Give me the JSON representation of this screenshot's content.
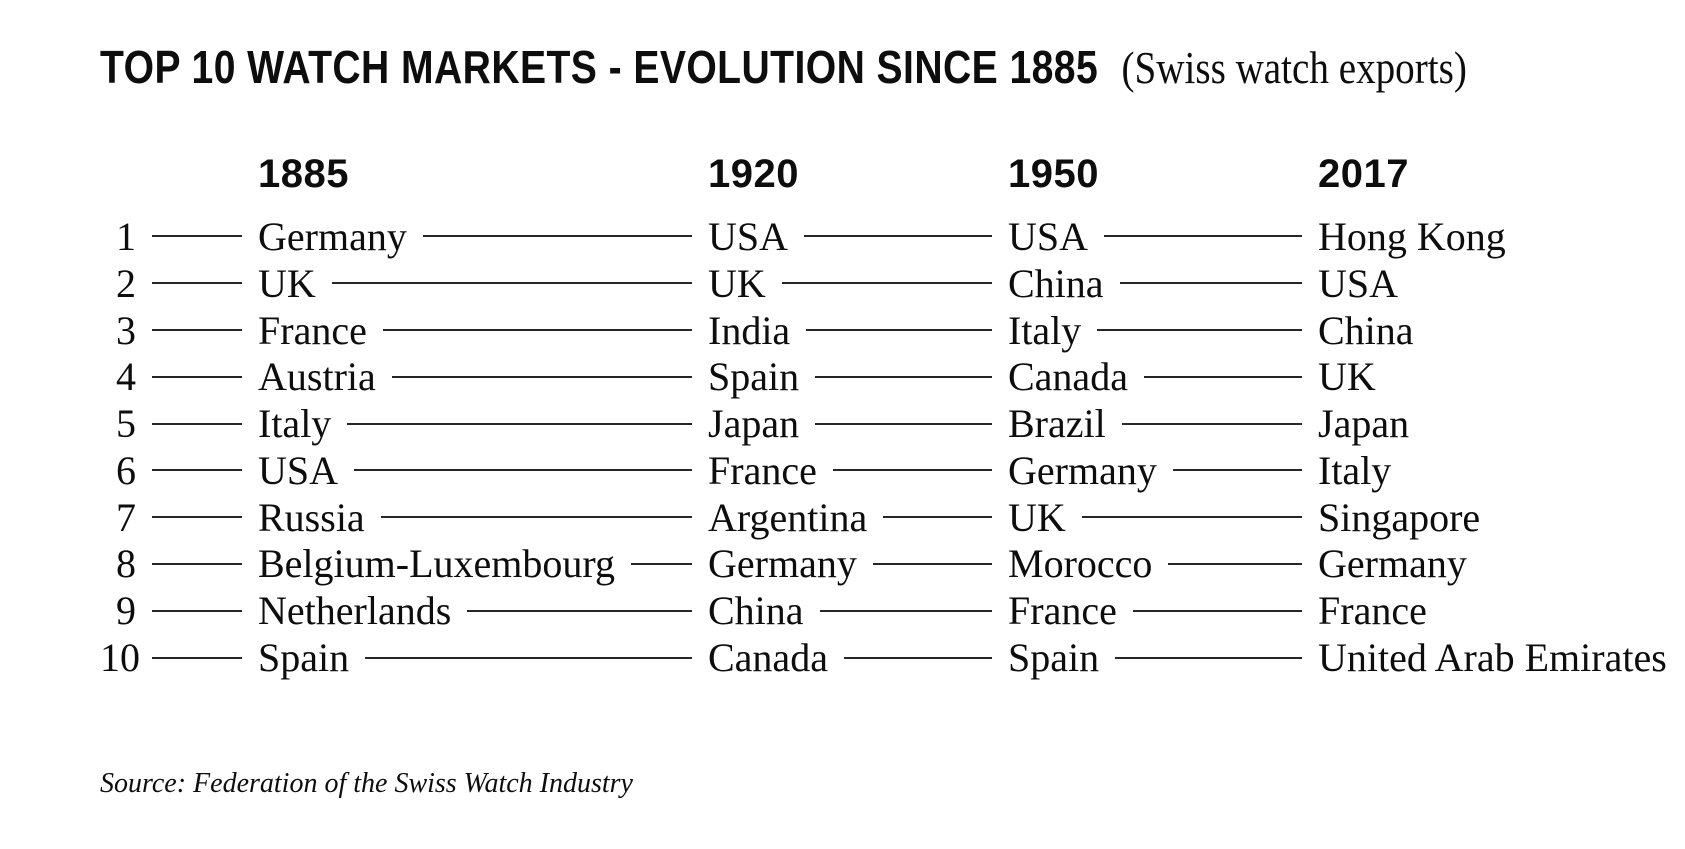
{
  "chart_data": {
    "type": "table",
    "title": "TOP 10 WATCH MARKETS - EVOLUTION SINCE 1885",
    "subtitle": "(Swiss watch exports)",
    "columns": [
      "1885",
      "1920",
      "1950",
      "2017"
    ],
    "rows": [
      {
        "rank": "1",
        "y1885": "Germany",
        "y1920": "USA",
        "y1950": "USA",
        "y2017": "Hong Kong"
      },
      {
        "rank": "2",
        "y1885": "UK",
        "y1920": "UK",
        "y1950": "China",
        "y2017": "USA"
      },
      {
        "rank": "3",
        "y1885": "France",
        "y1920": "India",
        "y1950": "Italy",
        "y2017": "China"
      },
      {
        "rank": "4",
        "y1885": "Austria",
        "y1920": "Spain",
        "y1950": "Canada",
        "y2017": "UK"
      },
      {
        "rank": "5",
        "y1885": "Italy",
        "y1920": "Japan",
        "y1950": "Brazil",
        "y2017": "Japan"
      },
      {
        "rank": "6",
        "y1885": "USA",
        "y1920": "France",
        "y1950": "Germany",
        "y2017": "Italy"
      },
      {
        "rank": "7",
        "y1885": "Russia",
        "y1920": "Argentina",
        "y1950": "UK",
        "y2017": "Singapore"
      },
      {
        "rank": "8",
        "y1885": "Belgium-Luxembourg",
        "y1920": "Germany",
        "y1950": "Morocco",
        "y2017": "Germany"
      },
      {
        "rank": "9",
        "y1885": "Netherlands",
        "y1920": "China",
        "y1950": "France",
        "y2017": "France"
      },
      {
        "rank": "10",
        "y1885": "Spain",
        "y1920": "Canada",
        "y1950": "Spain",
        "y2017": "United Arab Emirates"
      }
    ],
    "source": "Source: Federation of the Swiss Watch Industry",
    "colors": {
      "text": "#0d0d0d",
      "line": "#262626",
      "background": "#ffffff"
    }
  }
}
